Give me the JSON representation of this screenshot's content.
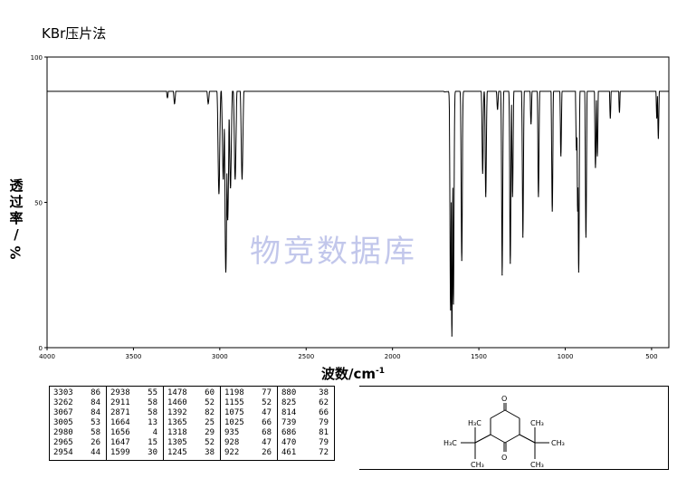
{
  "title": "KBr压片法",
  "watermark": "物竞数据库",
  "chart_data": {
    "type": "line",
    "title": "KBr压片法",
    "xlabel": "波数/cm",
    "xlabel_sup": "-1",
    "ylabel_chars": [
      "透",
      "过",
      "率"
    ],
    "ylabel_unit": "%",
    "xlim": [
      4000,
      400
    ],
    "ylim": [
      0,
      100
    ],
    "xticks": [
      {
        "v": 4000,
        "label": "4000"
      },
      {
        "v": 3500,
        "label": "3500"
      },
      {
        "v": 3000,
        "label": "3000"
      },
      {
        "v": 2500,
        "label": "2500"
      },
      {
        "v": 2000,
        "label": "2000"
      },
      {
        "v": 1500,
        "label": "1500"
      },
      {
        "v": 1000,
        "label": "1000"
      },
      {
        "v": 500,
        "label": "500"
      }
    ],
    "yticks": [
      {
        "v": 100,
        "label": "100"
      },
      {
        "v": 50,
        "label": "50"
      },
      {
        "v": 0,
        "label": "0"
      }
    ],
    "grid": false,
    "line_color": "#000000",
    "baseline": [
      [
        4000,
        94
      ],
      [
        3700,
        94.5
      ],
      [
        3550,
        95
      ],
      [
        3420,
        94.5
      ],
      [
        3330,
        93
      ],
      [
        3280,
        91
      ],
      [
        3120,
        91
      ],
      [
        3060,
        90.5
      ],
      [
        2880,
        92
      ],
      [
        2800,
        93
      ],
      [
        2500,
        94
      ],
      [
        2200,
        93.5
      ],
      [
        1900,
        93
      ],
      [
        1850,
        92
      ],
      [
        1800,
        91
      ],
      [
        1760,
        90
      ],
      [
        1720,
        89
      ],
      [
        1700,
        88
      ],
      [
        1500,
        89
      ],
      [
        1400,
        89
      ],
      [
        1200,
        91
      ],
      [
        1000,
        92
      ],
      [
        800,
        93
      ],
      [
        600,
        94
      ],
      [
        470,
        93
      ],
      [
        400,
        89
      ]
    ],
    "peaks": [
      {
        "x": 3303,
        "y": 86
      },
      {
        "x": 3262,
        "y": 84
      },
      {
        "x": 3067,
        "y": 84
      },
      {
        "x": 3005,
        "y": 53
      },
      {
        "x": 2980,
        "y": 58
      },
      {
        "x": 2965,
        "y": 26
      },
      {
        "x": 2954,
        "y": 44
      },
      {
        "x": 2938,
        "y": 55
      },
      {
        "x": 2911,
        "y": 58
      },
      {
        "x": 2871,
        "y": 58
      },
      {
        "x": 1664,
        "y": 13
      },
      {
        "x": 1656,
        "y": 4
      },
      {
        "x": 1647,
        "y": 15
      },
      {
        "x": 1599,
        "y": 30
      },
      {
        "x": 1478,
        "y": 60
      },
      {
        "x": 1460,
        "y": 52
      },
      {
        "x": 1392,
        "y": 82
      },
      {
        "x": 1365,
        "y": 25
      },
      {
        "x": 1318,
        "y": 29
      },
      {
        "x": 1305,
        "y": 52
      },
      {
        "x": 1245,
        "y": 38
      },
      {
        "x": 1198,
        "y": 77
      },
      {
        "x": 1155,
        "y": 52
      },
      {
        "x": 1075,
        "y": 47
      },
      {
        "x": 1025,
        "y": 66
      },
      {
        "x": 935,
        "y": 68
      },
      {
        "x": 928,
        "y": 47
      },
      {
        "x": 922,
        "y": 26
      },
      {
        "x": 880,
        "y": 38
      },
      {
        "x": 825,
        "y": 62
      },
      {
        "x": 814,
        "y": 66
      },
      {
        "x": 739,
        "y": 79
      },
      {
        "x": 686,
        "y": 81
      },
      {
        "x": 470,
        "y": 79
      },
      {
        "x": 461,
        "y": 72
      }
    ]
  },
  "peak_table": [
    [
      [
        "3303",
        "86"
      ],
      [
        "3262",
        "84"
      ],
      [
        "3067",
        "84"
      ],
      [
        "3005",
        "53"
      ],
      [
        "2980",
        "58"
      ],
      [
        "2965",
        "26"
      ],
      [
        "2954",
        "44"
      ]
    ],
    [
      [
        "2938",
        "55"
      ],
      [
        "2911",
        "58"
      ],
      [
        "2871",
        "58"
      ],
      [
        "1664",
        "13"
      ],
      [
        "1656",
        "4"
      ],
      [
        "1647",
        "15"
      ],
      [
        "1599",
        "30"
      ]
    ],
    [
      [
        "1478",
        "60"
      ],
      [
        "1460",
        "52"
      ],
      [
        "1392",
        "82"
      ],
      [
        "1365",
        "25"
      ],
      [
        "1318",
        "29"
      ],
      [
        "1305",
        "52"
      ],
      [
        "1245",
        "38"
      ]
    ],
    [
      [
        "1198",
        "77"
      ],
      [
        "1155",
        "52"
      ],
      [
        "1075",
        "47"
      ],
      [
        "1025",
        "66"
      ],
      [
        "935",
        "68"
      ],
      [
        "928",
        "47"
      ],
      [
        "922",
        "26"
      ]
    ],
    [
      [
        "880",
        "38"
      ],
      [
        "825",
        "62"
      ],
      [
        "814",
        "66"
      ],
      [
        "739",
        "79"
      ],
      [
        "686",
        "81"
      ],
      [
        "470",
        "79"
      ],
      [
        "461",
        "72"
      ]
    ]
  ],
  "structure": {
    "labels": [
      "O",
      "O",
      "H₃C",
      "H₃C",
      "CH₃",
      "CH₃",
      "CH₃",
      "CH₃"
    ]
  }
}
